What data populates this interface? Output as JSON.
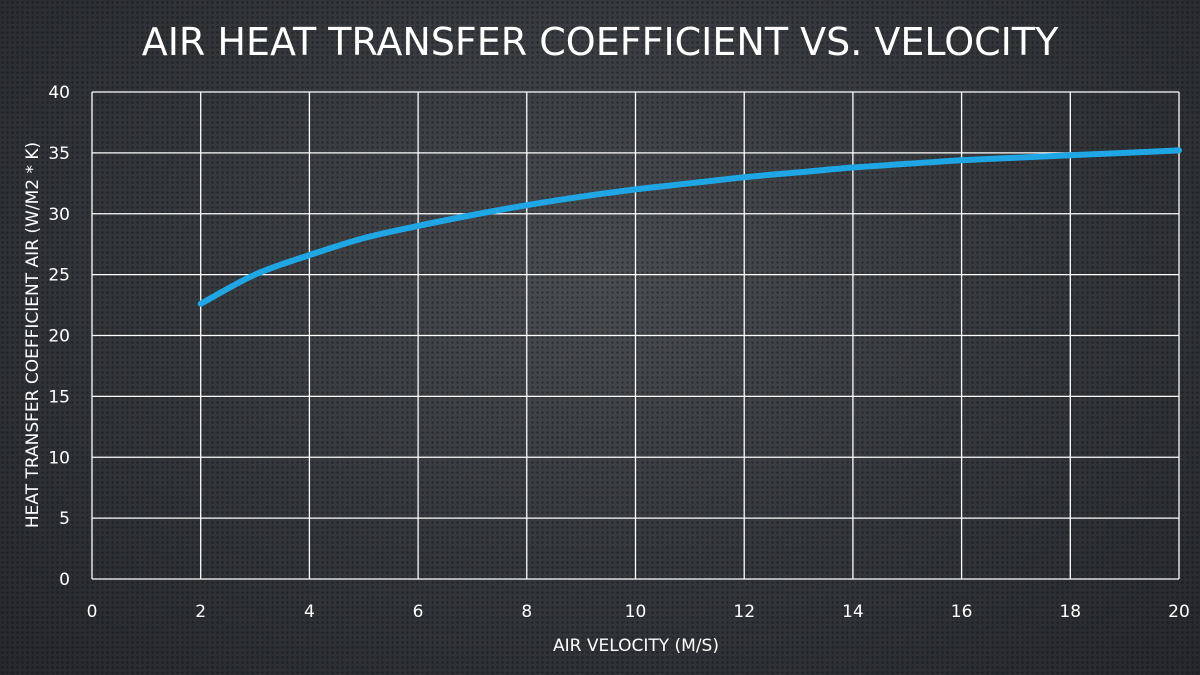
{
  "chart_data": {
    "type": "line",
    "title": "AIR HEAT TRANSFER COEFFICIENT VS. VELOCITY",
    "xlabel": "AIR VELOCITY (M/S)",
    "ylabel": "HEAT TRANSFER COEFFICIENT AIR (W/M2 * K)",
    "xlim": [
      0,
      20
    ],
    "ylim": [
      0,
      40
    ],
    "xticks": [
      "0",
      "2",
      "4",
      "6",
      "8",
      "10",
      "12",
      "14",
      "16",
      "18",
      "20"
    ],
    "yticks": [
      "0",
      "5",
      "10",
      "15",
      "20",
      "25",
      "30",
      "35",
      "40"
    ],
    "grid": true,
    "legend": "none",
    "line_color": "#1ea7e4",
    "grid_color": "#ffffff",
    "series": [
      {
        "x": [
          2,
          3,
          4,
          5,
          6,
          7,
          8,
          9,
          10,
          11,
          12,
          13,
          14,
          15,
          16,
          17,
          18,
          19,
          20
        ],
        "y": [
          22.6,
          25.0,
          26.6,
          28.0,
          29.0,
          29.9,
          30.7,
          31.4,
          32.0,
          32.5,
          33.0,
          33.4,
          33.8,
          34.1,
          34.4,
          34.6,
          34.8,
          35.0,
          35.2
        ]
      }
    ]
  }
}
